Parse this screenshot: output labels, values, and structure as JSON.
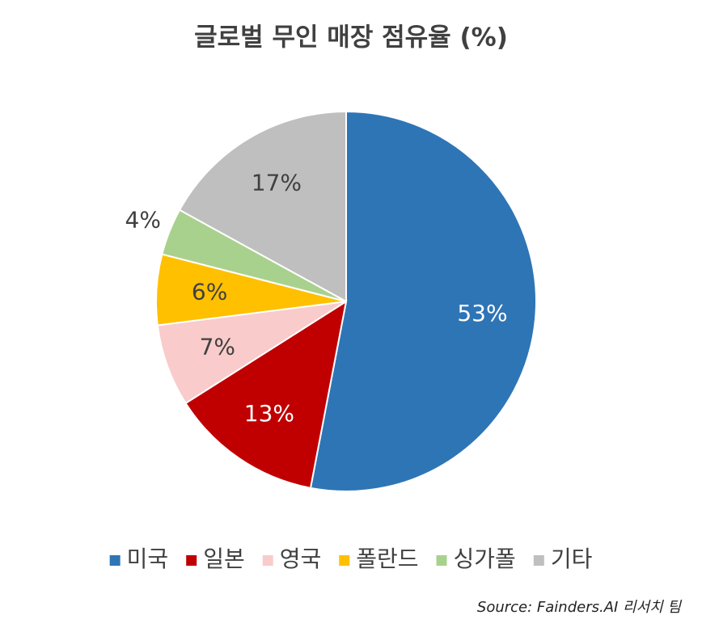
{
  "chart_data": {
    "type": "pie",
    "title": "글로벌 무인 매장 점유율 (%)",
    "categories": [
      "미국",
      "일본",
      "영국",
      "폴란드",
      "싱가폴",
      "기타"
    ],
    "values": [
      53,
      13,
      7,
      6,
      4,
      17
    ],
    "value_labels": [
      "53%",
      "13%",
      "7%",
      "6%",
      "4%",
      "17%"
    ],
    "colors": [
      "#2e75b6",
      "#c00000",
      "#f9cbcb",
      "#ffc000",
      "#a9d18e",
      "#bfbfbf"
    ],
    "legend": "bottom",
    "source": "Source: Fainders.AI 리서치 팀"
  }
}
